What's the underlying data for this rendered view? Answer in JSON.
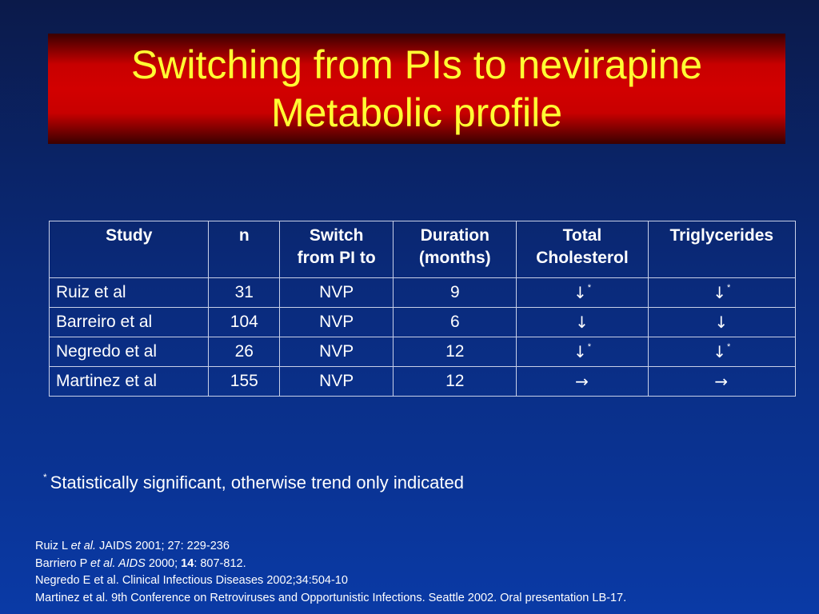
{
  "title": {
    "line1": "Switching from PIs to nevirapine",
    "line2": "Metabolic profile"
  },
  "table": {
    "headers": {
      "study": "Study",
      "n": "n",
      "switch_1": "Switch",
      "switch_2": "from PI to",
      "duration_1": "Duration",
      "duration_2": "(months)",
      "chol_1": "Total",
      "chol_2": "Cholesterol",
      "trig": "Triglycerides"
    },
    "rows": [
      {
        "study": "Ruiz et al",
        "n": "31",
        "switch": "NVP",
        "duration": "9",
        "chol": "↓",
        "chol_mark": "*",
        "trig": "↓",
        "trig_mark": "*"
      },
      {
        "study": "Barreiro et al",
        "n": "104",
        "switch": "NVP",
        "duration": "6",
        "chol": "↓",
        "chol_mark": "",
        "trig": "↓",
        "trig_mark": ""
      },
      {
        "study": "Negredo et al",
        "n": "26",
        "switch": "NVP",
        "duration": "12",
        "chol": "↓",
        "chol_mark": "*",
        "trig": "↓",
        "trig_mark": "*"
      },
      {
        "study": "Martinez et al",
        "n": "155",
        "switch": "NVP",
        "duration": "12",
        "chol": "→",
        "chol_mark": "",
        "trig": "→",
        "trig_mark": ""
      }
    ]
  },
  "footnote": {
    "mark": "*",
    "text": "Statistically significant, otherwise trend only indicated"
  },
  "references": {
    "ref1": {
      "a": "Ruiz L ",
      "b": "et al.",
      "c": "  JAIDS 2001; 27: 229-236"
    },
    "ref2": {
      "a": "Barriero P ",
      "b": "et al.  AIDS",
      "c": " 2000; ",
      "d": "14",
      "e": ": 807-812."
    },
    "ref3": "Negredo E et al. Clinical Infectious Diseases 2002;34:504-10",
    "ref4": "Martinez et al. 9th Conference on Retroviruses and Opportunistic Infections.  Seattle 2002.  Oral presentation LB-17."
  }
}
